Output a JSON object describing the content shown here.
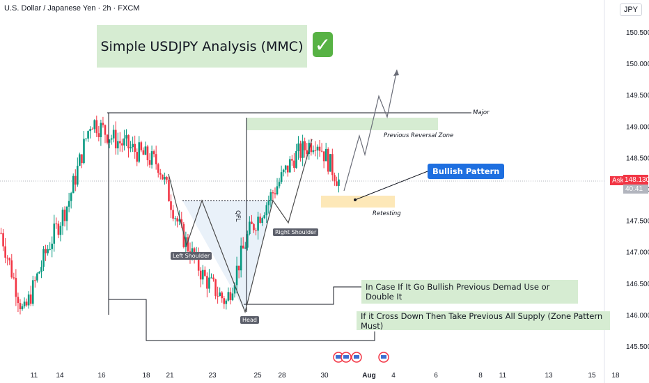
{
  "header": {
    "symbol": "U.S. Dollar / Japanese Yen · 2h · FXCM",
    "currency": "JPY"
  },
  "annotations": {
    "title": "Simple USDJPY Analysis (MMC)",
    "check_icon": "heavy-check-mark",
    "bullish_pattern": "Bullish Pattern",
    "major": "Major",
    "previous_reversal_zone": "Previous Reversal Zone",
    "retesting": "Retesting",
    "qfl": "QFL",
    "left_shoulder": "Left Shoulder",
    "head": "Head",
    "right_shoulder": "Right Shoulder",
    "note_bullish": "In Case If It Go Bullish Previous Demad Use or Double It",
    "note_bearish": "If it Cross Down Then Take Previous All Supply (Zone Pattern Must)"
  },
  "price_axis": {
    "ask_label": "Ask",
    "current_price": "148.130",
    "countdown": "40:41"
  },
  "colors": {
    "up": "#089981",
    "down": "#f23645",
    "zone_green": "#d6ecd2",
    "zone_orange": "#fde8b8",
    "bull_blue": "#1e6fe0"
  },
  "chart_data": {
    "type": "candlestick",
    "title": "",
    "instrument": "USDJPY",
    "timeframe": "2h",
    "ylim": [
      145.3,
      151.0
    ],
    "yticks": [
      "150.500",
      "150.000",
      "149.500",
      "149.000",
      "148.500",
      "148.000",
      "147.500",
      "147.000",
      "146.500",
      "146.000",
      "145.500"
    ],
    "xticks": [
      "11",
      "14",
      "16",
      "18",
      "21",
      "23",
      "25",
      "28",
      "30",
      "Aug",
      "4",
      "6",
      "8",
      "11",
      "13",
      "15",
      "18"
    ],
    "price_path": [
      {
        "date": "Jul 10",
        "close": 147.3
      },
      {
        "date": "Jul 11",
        "close": 146.0
      },
      {
        "date": "Jul 14",
        "close": 147.0
      },
      {
        "date": "Jul 15",
        "close": 147.8
      },
      {
        "date": "Jul 16",
        "close": 149.1
      },
      {
        "date": "Jul 17",
        "close": 148.8
      },
      {
        "date": "Jul 18",
        "close": 148.6
      },
      {
        "date": "Jul 21",
        "close": 148.4
      },
      {
        "date": "Jul 22",
        "close": 147.3
      },
      {
        "date": "Jul 23",
        "close": 146.6
      },
      {
        "date": "Jul 24",
        "close": 146.2
      },
      {
        "date": "Jul 25",
        "close": 147.3
      },
      {
        "date": "Jul 28",
        "close": 147.9
      },
      {
        "date": "Jul 29",
        "close": 148.5
      },
      {
        "date": "Jul 30",
        "close": 148.8
      },
      {
        "date": "Jul 31",
        "close": 148.13
      }
    ],
    "levels": {
      "major": 149.23,
      "qfl_neckline": 147.83
    },
    "zones": [
      {
        "name": "Previous Reversal Zone",
        "from": 148.95,
        "to": 149.1
      },
      {
        "name": "Retesting",
        "from": 147.7,
        "to": 147.85
      }
    ]
  }
}
